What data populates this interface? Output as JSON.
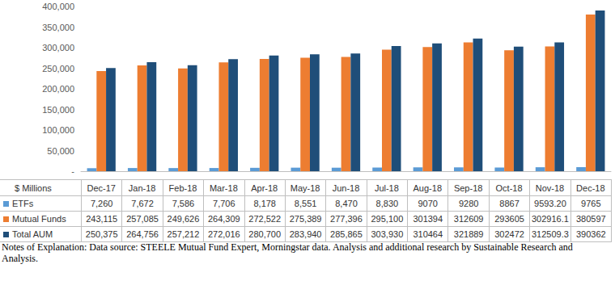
{
  "chart_data": {
    "type": "bar",
    "categories": [
      "Dec-17",
      "Jan-18",
      "Feb-18",
      "Mar-18",
      "Apr-18",
      "May-18",
      "Jun-18",
      "Jul-18",
      "Aug-18",
      "Sep-18",
      "Oct-18",
      "Nov-18",
      "Dec-18"
    ],
    "series": [
      {
        "name": "ETFs",
        "color": "#5B9BD5",
        "values": [
          7260,
          7672,
          7586,
          7706,
          8178,
          8551,
          8470,
          8830,
          9070,
          9280,
          8867,
          9593.2,
          9765
        ],
        "value_labels": [
          "7,260",
          "7,672",
          "7,586",
          "7,706",
          "8,178",
          "8,551",
          "8,470",
          "8,830",
          "9070",
          "9280",
          "8867",
          "9593.20",
          "9765"
        ]
      },
      {
        "name": "Mutual Funds",
        "color": "#ED7D31",
        "values": [
          243115,
          257085,
          249626,
          264309,
          272522,
          275389,
          277396,
          295100,
          301394,
          312609,
          293605,
          302916.1,
          380597
        ],
        "value_labels": [
          "243,115",
          "257,085",
          "249,626",
          "264,309",
          "272,522",
          "275,389",
          "277,396",
          "295,100",
          "301394",
          "312609",
          "293605",
          "302916.1",
          "380597"
        ]
      },
      {
        "name": "Total AUM",
        "color": "#1F4E79",
        "values": [
          250375,
          264756,
          257212,
          272016,
          280700,
          283940,
          285865,
          303930,
          310464,
          321889,
          302472,
          312509.3,
          390362
        ],
        "value_labels": [
          "250,375",
          "264,756",
          "257,212",
          "272,016",
          "280,700",
          "283,940",
          "285,865",
          "303,930",
          "310464",
          "321889",
          "302472",
          "312509.3",
          "390362"
        ]
      }
    ],
    "ylim": [
      0,
      400000
    ],
    "yticks": [
      {
        "value": 0,
        "label": "-"
      },
      {
        "value": 50000,
        "label": "50,000"
      },
      {
        "value": 100000,
        "label": "100,000"
      },
      {
        "value": 150000,
        "label": "150,000"
      },
      {
        "value": 200000,
        "label": "200,000"
      },
      {
        "value": 250000,
        "label": "250,000"
      },
      {
        "value": 300000,
        "label": "300,000"
      },
      {
        "value": 350000,
        "label": "350,000"
      },
      {
        "value": 400000,
        "label": "400,000"
      }
    ],
    "grid": false,
    "annotations": [
      "$ Millions",
      "Notes of Explanation:  Data source:  STEELE Mutual Fund Expert, Morningstar data. Analysis and additional research by Sustainable Research and Analysis."
    ]
  }
}
